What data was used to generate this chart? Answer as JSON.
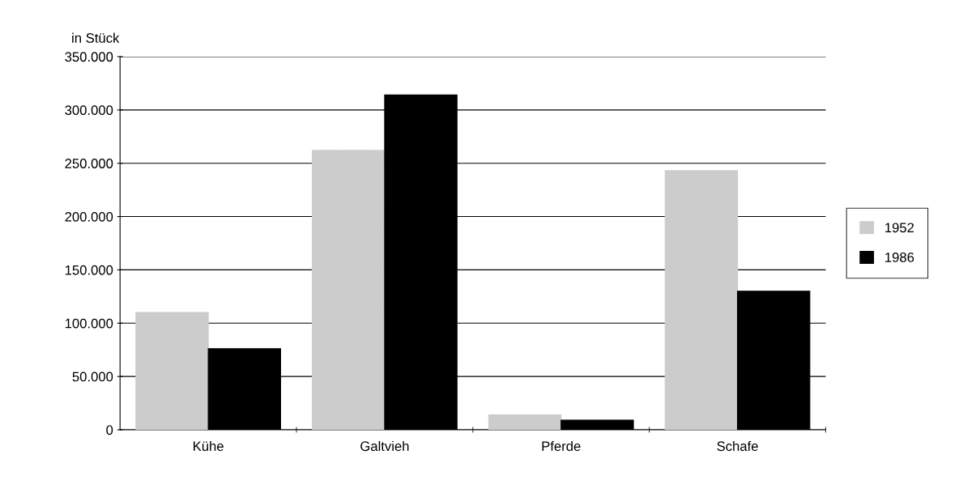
{
  "chart_data": {
    "type": "bar",
    "ylabel": "in Stück",
    "categories": [
      "Kühe",
      "Galtvieh",
      "Pferde",
      "Schafe"
    ],
    "series": [
      {
        "name": "1952",
        "color": "#cccccc",
        "values": [
          110000,
          262000,
          14000,
          243000
        ]
      },
      {
        "name": "1986",
        "color": "#000000",
        "values": [
          76000,
          314000,
          9000,
          130000
        ]
      }
    ],
    "ylim": [
      0,
      350000
    ],
    "yticks": [
      {
        "value": 0,
        "label": "0"
      },
      {
        "value": 50000,
        "label": "50.000"
      },
      {
        "value": 100000,
        "label": "100.000"
      },
      {
        "value": 150000,
        "label": "150.000"
      },
      {
        "value": 200000,
        "label": "200.000"
      },
      {
        "value": 250000,
        "label": "250.000"
      },
      {
        "value": 300000,
        "label": "300.000"
      },
      {
        "value": 350000,
        "label": "350.000"
      }
    ],
    "grid": "y",
    "legend": "right"
  }
}
